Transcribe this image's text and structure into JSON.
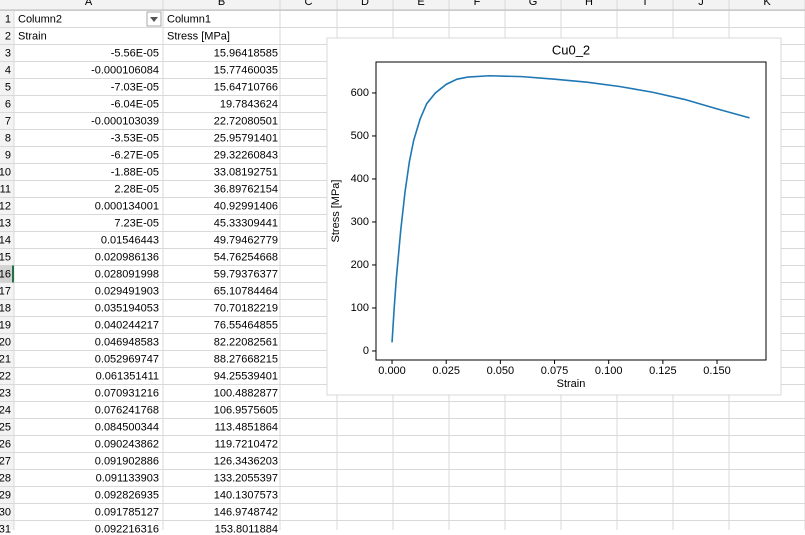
{
  "sheet": {
    "columns": [
      "A",
      "B",
      "C",
      "D",
      "E",
      "F",
      "G",
      "H",
      "I",
      "J",
      "K"
    ],
    "rows": [
      [
        "1",
        "Column2",
        "Column1"
      ],
      [
        "2",
        "Strain",
        "Stress [MPa]"
      ],
      [
        "3",
        "-5.56E-05",
        "15.96418585"
      ],
      [
        "4",
        "-0.000106084",
        "15.77460035"
      ],
      [
        "5",
        "-7.03E-05",
        "15.64710766"
      ],
      [
        "6",
        "-6.04E-05",
        "19.7843624"
      ],
      [
        "7",
        "-0.000103039",
        "22.72080501"
      ],
      [
        "8",
        "-3.53E-05",
        "25.95791401"
      ],
      [
        "9",
        "-6.27E-05",
        "29.32260843"
      ],
      [
        "10",
        "-1.88E-05",
        "33.08192751"
      ],
      [
        "11",
        "2.28E-05",
        "36.89762154"
      ],
      [
        "12",
        "0.000134001",
        "40.92991406"
      ],
      [
        "13",
        "7.23E-05",
        "45.33309441"
      ],
      [
        "14",
        "0.01546443",
        "49.79462779"
      ],
      [
        "15",
        "0.020986136",
        "54.76254668"
      ],
      [
        "16",
        "0.028091998",
        "59.79376377"
      ],
      [
        "17",
        "0.029491903",
        "65.10784464"
      ],
      [
        "18",
        "0.035194053",
        "70.70182219"
      ],
      [
        "19",
        "0.040244217",
        "76.55464855"
      ],
      [
        "20",
        "0.046948583",
        "82.22082561"
      ],
      [
        "21",
        "0.052969747",
        "88.27668215"
      ],
      [
        "22",
        "0.061351411",
        "94.25539401"
      ],
      [
        "23",
        "0.070931216",
        "100.4882877"
      ],
      [
        "24",
        "0.076241768",
        "106.9575605"
      ],
      [
        "25",
        "0.084500344",
        "113.4851864"
      ],
      [
        "26",
        "0.090243862",
        "119.7210472"
      ],
      [
        "27",
        "0.091902886",
        "126.3436203"
      ],
      [
        "28",
        "0.091133903",
        "133.2055397"
      ],
      [
        "29",
        "0.092826935",
        "140.1307573"
      ],
      [
        "30",
        "0.091785127",
        "146.9748742"
      ],
      [
        "31",
        "0.092216316",
        "153.8011884"
      ]
    ]
  },
  "chart": {
    "type": "line",
    "title": "Cu0_2",
    "x_label": "Strain",
    "y_label": "Stress [MPa]",
    "x": [
      0,
      0.001,
      0.002,
      0.004,
      0.006,
      0.008,
      0.01,
      0.013,
      0.016,
      0.02,
      0.025,
      0.03,
      0.035,
      0.045,
      0.06,
      0.075,
      0.09,
      0.105,
      0.12,
      0.135,
      0.15,
      0.165
    ],
    "series": [
      {
        "color": "#1f77b4",
        "values": [
          20,
          100,
          170,
          280,
          370,
          440,
          490,
          540,
          575,
          600,
          620,
          632,
          637,
          640,
          638,
          632,
          625,
          615,
          602,
          585,
          563,
          542
        ]
      }
    ],
    "xlim": [
      -0.0074,
      0.1726
    ],
    "ylim": [
      -21,
      672
    ],
    "xticks": [
      {
        "value": 0,
        "label": "0.000"
      },
      {
        "value": 0.025,
        "label": "0.025"
      },
      {
        "value": 0.05,
        "label": "0.050"
      },
      {
        "value": 0.075,
        "label": "0.075"
      },
      {
        "value": 0.1,
        "label": "0.100"
      },
      {
        "value": 0.125,
        "label": "0.125"
      },
      {
        "value": 0.15,
        "label": "0.150"
      }
    ],
    "yticks": [
      0,
      100,
      200,
      300,
      400,
      500,
      600
    ]
  }
}
